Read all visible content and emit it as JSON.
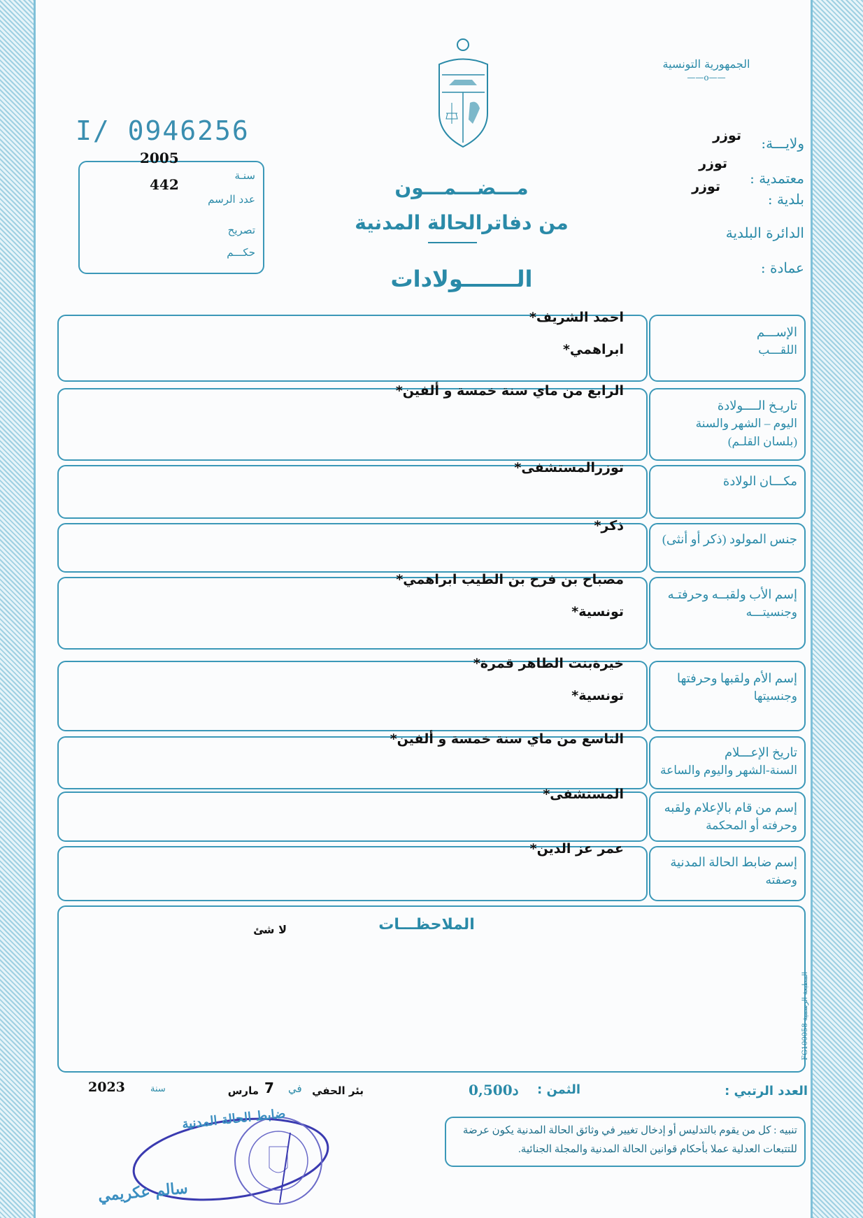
{
  "header": {
    "republic": "الجمهورية التونسية",
    "ornament": "——o——",
    "serial_number": "I/ 0946256",
    "wilaya_label": "ولايـــة:",
    "wilaya_value": "توزر",
    "delegation_label": "معتمدية :",
    "delegation_value": "توزر",
    "municipality_label": "بلدية :",
    "municipality_value": "توزر",
    "district_label": "الدائرة البلدية",
    "omda_label": "عمادة :"
  },
  "registry_box": {
    "year_label": "سنـة",
    "year_value": "2005",
    "act_number_label": "عدد الرسم",
    "act_number_value": "442",
    "declaration_label": "تصريح",
    "judgment_label": "حكـــم"
  },
  "title": {
    "line1": "مـــضـــمـــون",
    "line2": "من دفاترالحالة المدنية",
    "line3": "الـــــــولادات"
  },
  "rows": [
    {
      "label": "الإســـم",
      "label2": "اللقـــب",
      "value": "احمد الشريف*",
      "value2": "ابراهمي*"
    },
    {
      "label": "تاريـخ الــــولادة",
      "label2": "اليوم – الشهر والسنة",
      "label3": "(بلسان القلـم)",
      "value": "الرابع من ماي سنة خمسة و ألفين*"
    },
    {
      "label": "مكـــان الولادة",
      "value": "توزرالمستشفى*"
    },
    {
      "label": "جنس المولود (ذكر أو أنثى)",
      "value": "ذكر*"
    },
    {
      "label": "إسم الأب ولقبــه وحرفتـه",
      "label2": "وجنسيتـــه",
      "value": "مصباح بن فرح بن الطيب ابراهمي*",
      "value2": "تونسية*"
    },
    {
      "label": "إسم الأم ولقبها وحرفتها",
      "label2": "وجنسيتها",
      "value": "خيرةبنت الطاهر قمرة*",
      "value2": "تونسية*"
    },
    {
      "label": "تاريخ الإعـــلام",
      "label2": "السنة-الشهر واليوم والساعة",
      "value": "التاسع من ماي سنة خمسة و ألفين*"
    },
    {
      "label": "إسم من قام بالإعلام ولقبه",
      "label2": "وحرفته أو المحكمة",
      "value": "المستشفى*"
    },
    {
      "label": "إسم ضابط الحالة المدنية",
      "label2": "وصفته",
      "value": "عمر عز الدين*"
    }
  ],
  "remarks": {
    "label": "الملاحظـــات",
    "value": "لا شئ"
  },
  "footer": {
    "serial_label": "العدد الرتبي :",
    "price_label": "الثمن :",
    "price_value": "0,500د",
    "place": "بئر الحفي",
    "in_label": "في",
    "day": "7",
    "month": "مارس",
    "year_label": "سنة",
    "year_value": "2023",
    "warning": "تنبيه : كل من يقوم بالتدليس أو إدخال تغيير في وثائق الحالة المدنية يكون عرضة للتتبعات العدلية عملا بأحكام قوانين الحالة المدنية والمجلة الجنائية.",
    "stamp_text": "ضابط الحالة المدنية",
    "signature": "سالم عكريمي",
    "printer": "المطبعة الرسمية FG100058"
  },
  "colors": {
    "print": "#2a8aa8",
    "ink": "#111111",
    "stamp": "#3a3ab0"
  }
}
